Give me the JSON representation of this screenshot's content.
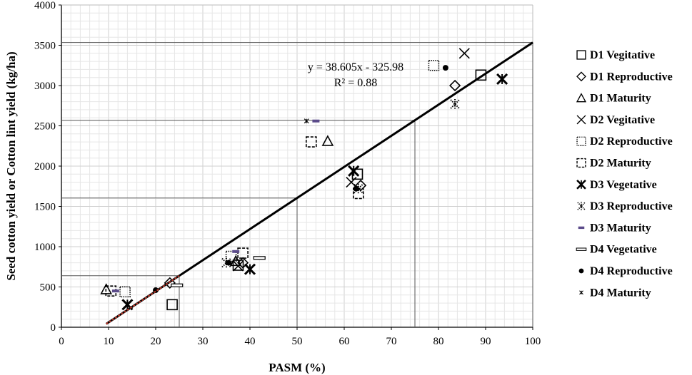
{
  "chart_data": {
    "type": "scatter",
    "xlabel": "PASM (%)",
    "ylabel": "Seed cotton yield or Cotton lint yield (kg/ha)",
    "xlim": [
      0,
      100
    ],
    "ylim": [
      0,
      4000
    ],
    "x_ticks": [
      "0",
      "10",
      "20",
      "30",
      "40",
      "50",
      "60",
      "70",
      "80",
      "90",
      "100"
    ],
    "y_ticks": [
      "0",
      "500",
      "1000",
      "1500",
      "2000",
      "2500",
      "3000",
      "3500",
      "4000"
    ],
    "grid": true,
    "legend_position": "right",
    "equation": "y = 38.605x - 325.98",
    "r_squared": "R² = 0.88",
    "trendline": {
      "slope": 38.605,
      "intercept": -325.98,
      "x_range": [
        9.5,
        100
      ],
      "color": "#000000"
    },
    "extrapolation_line": {
      "x_range": [
        9.5,
        25
      ],
      "color": "#c0392b"
    },
    "reference_lines": [
      {
        "x": 25,
        "y": 639
      },
      {
        "x": 50,
        "y": 1604
      },
      {
        "x": 75,
        "y": 2569
      },
      {
        "x": 100,
        "y": 3534
      }
    ],
    "series": [
      {
        "name": "D1 Vegitative",
        "marker": "square",
        "points": [
          [
            23.5,
            280
          ],
          [
            37.5,
            770
          ],
          [
            62.8,
            1900
          ],
          [
            89,
            3130
          ]
        ]
      },
      {
        "name": "D1 Reproductive",
        "marker": "diamond",
        "points": [
          [
            23,
            550
          ],
          [
            38.5,
            800
          ],
          [
            63.5,
            1760
          ],
          [
            83.5,
            3000
          ]
        ]
      },
      {
        "name": "D1 Maturity",
        "marker": "triangle",
        "points": [
          [
            9.5,
            470
          ],
          [
            37,
            820
          ],
          [
            56.5,
            2310
          ]
        ]
      },
      {
        "name": "D2 Vegitative",
        "marker": "x",
        "points": [
          [
            37.5,
            760
          ],
          [
            61.5,
            1800
          ],
          [
            85.5,
            3400
          ]
        ]
      },
      {
        "name": "D2 Reproductive",
        "marker": "dotted-square",
        "points": [
          [
            13.5,
            440
          ],
          [
            36,
            880
          ],
          [
            79,
            3250
          ]
        ]
      },
      {
        "name": "D2 Maturity",
        "marker": "dashed-square",
        "points": [
          [
            10.5,
            450
          ],
          [
            38.5,
            920
          ],
          [
            53,
            2300
          ],
          [
            63,
            1660
          ]
        ]
      },
      {
        "name": "D3 Vegetative",
        "marker": "asterisk",
        "points": [
          [
            14,
            280
          ],
          [
            40,
            720
          ],
          [
            62,
            1940
          ],
          [
            93.5,
            3080
          ]
        ]
      },
      {
        "name": "D3 Reproductive",
        "marker": "star-dots",
        "points": [
          [
            35,
            800
          ],
          [
            63,
            1720
          ],
          [
            83.5,
            2770
          ]
        ]
      },
      {
        "name": "D3 Maturity",
        "marker": "dash-purple",
        "points": [
          [
            11.5,
            450
          ],
          [
            37,
            940
          ],
          [
            54,
            2560
          ]
        ]
      },
      {
        "name": "D4 Vegetative",
        "marker": "dash",
        "points": [
          [
            24.5,
            520
          ],
          [
            42,
            860
          ]
        ]
      },
      {
        "name": "D4 Reproductive",
        "marker": "dot",
        "points": [
          [
            20,
            460
          ],
          [
            35.5,
            800
          ],
          [
            62.5,
            1720
          ],
          [
            81.5,
            3220
          ]
        ]
      },
      {
        "name": "D4 Maturity",
        "marker": "small-star",
        "points": [
          [
            52,
            2560
          ]
        ]
      }
    ]
  }
}
